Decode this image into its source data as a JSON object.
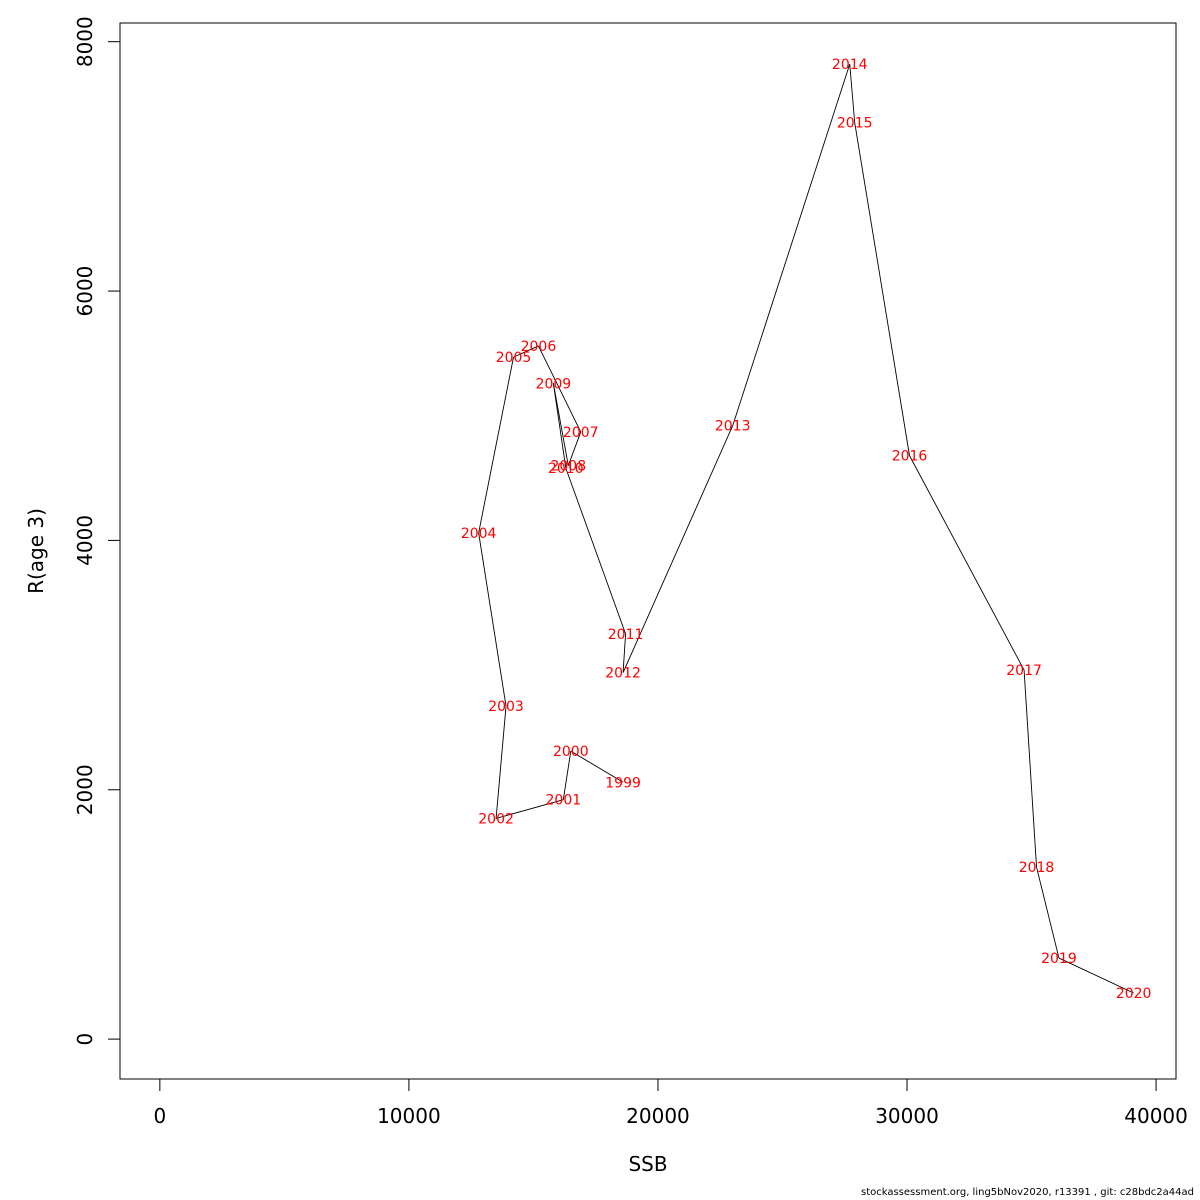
{
  "chart_data": {
    "type": "line",
    "xlabel": "SSB",
    "ylabel": "R(age 3)",
    "xlim": [
      -1600,
      40800
    ],
    "ylim": [
      -320,
      8150
    ],
    "x_ticks": [
      0,
      10000,
      20000,
      30000,
      40000
    ],
    "y_ticks": [
      0,
      2000,
      4000,
      6000,
      8000
    ],
    "grid": false,
    "line_color": "#000000",
    "label_color": "#ff0000",
    "points": [
      {
        "label": "1999",
        "x": 18600,
        "y": 2060
      },
      {
        "label": "2000",
        "x": 16500,
        "y": 2310
      },
      {
        "label": "2001",
        "x": 16200,
        "y": 1920
      },
      {
        "label": "2002",
        "x": 13500,
        "y": 1770
      },
      {
        "label": "2003",
        "x": 13900,
        "y": 2670
      },
      {
        "label": "2004",
        "x": 12800,
        "y": 4060
      },
      {
        "label": "2005",
        "x": 14200,
        "y": 5470
      },
      {
        "label": "2006",
        "x": 15200,
        "y": 5560
      },
      {
        "label": "2007",
        "x": 16900,
        "y": 4870
      },
      {
        "label": "2008",
        "x": 16400,
        "y": 4600
      },
      {
        "label": "2009",
        "x": 15800,
        "y": 5260
      },
      {
        "label": "2010",
        "x": 16300,
        "y": 4580
      },
      {
        "label": "2011",
        "x": 18700,
        "y": 3250
      },
      {
        "label": "2012",
        "x": 18600,
        "y": 2940
      },
      {
        "label": "2013",
        "x": 23000,
        "y": 4920
      },
      {
        "label": "2014",
        "x": 27700,
        "y": 7820
      },
      {
        "label": "2015",
        "x": 27900,
        "y": 7350
      },
      {
        "label": "2016",
        "x": 30100,
        "y": 4680
      },
      {
        "label": "2017",
        "x": 34700,
        "y": 2960
      },
      {
        "label": "2018",
        "x": 35200,
        "y": 1380
      },
      {
        "label": "2019",
        "x": 36100,
        "y": 650
      },
      {
        "label": "2020",
        "x": 39100,
        "y": 370
      }
    ]
  },
  "footer": "stockassessment.org, ling5bNov2020, r13391 , git: c28bdc2a44ad"
}
